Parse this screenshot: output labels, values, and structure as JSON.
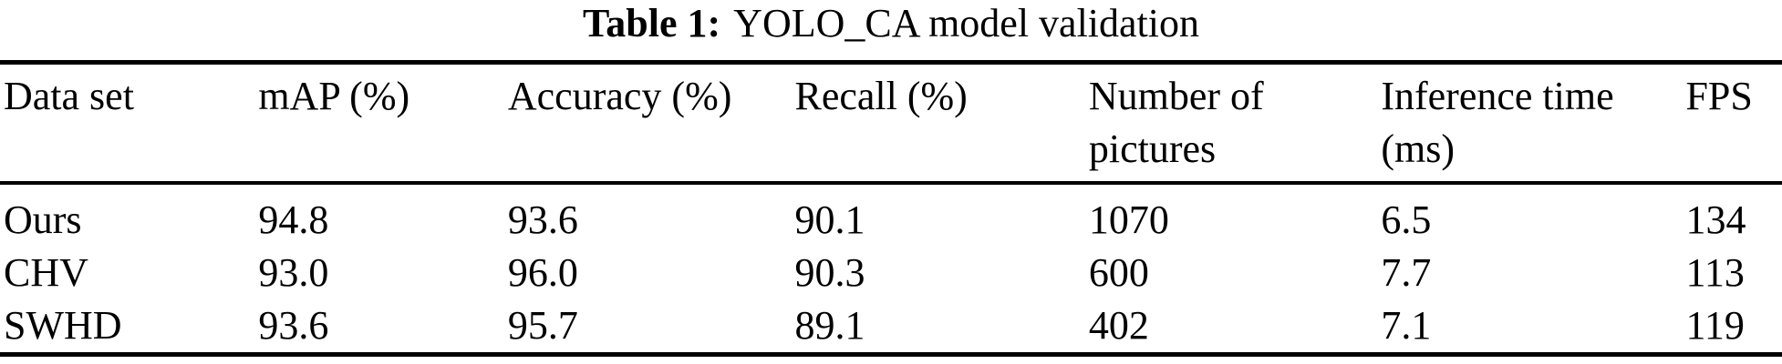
{
  "caption": {
    "label": "Table 1:",
    "text": "YOLO_CA model validation"
  },
  "table": {
    "columns": [
      "Data set",
      "mAP (%)",
      "Accuracy (%)",
      "Recall (%)",
      "Number of pictures",
      "Inference time (ms)",
      "FPS"
    ],
    "rows": [
      {
        "dataset": "Ours",
        "map_pct": "94.8",
        "accuracy_pct": "93.6",
        "recall_pct": "90.1",
        "num_pictures": "1070",
        "inference_time_ms": "6.5",
        "fps": "134"
      },
      {
        "dataset": "CHV",
        "map_pct": "93.0",
        "accuracy_pct": "96.0",
        "recall_pct": "90.3",
        "num_pictures": "600",
        "inference_time_ms": "7.7",
        "fps": "113"
      },
      {
        "dataset": "SWHD",
        "map_pct": "93.6",
        "accuracy_pct": "95.7",
        "recall_pct": "89.1",
        "num_pictures": "402",
        "inference_time_ms": "7.1",
        "fps": "119"
      }
    ]
  },
  "colors": {
    "text": "#000000",
    "background": "#ffffff",
    "rule": "#000000"
  }
}
